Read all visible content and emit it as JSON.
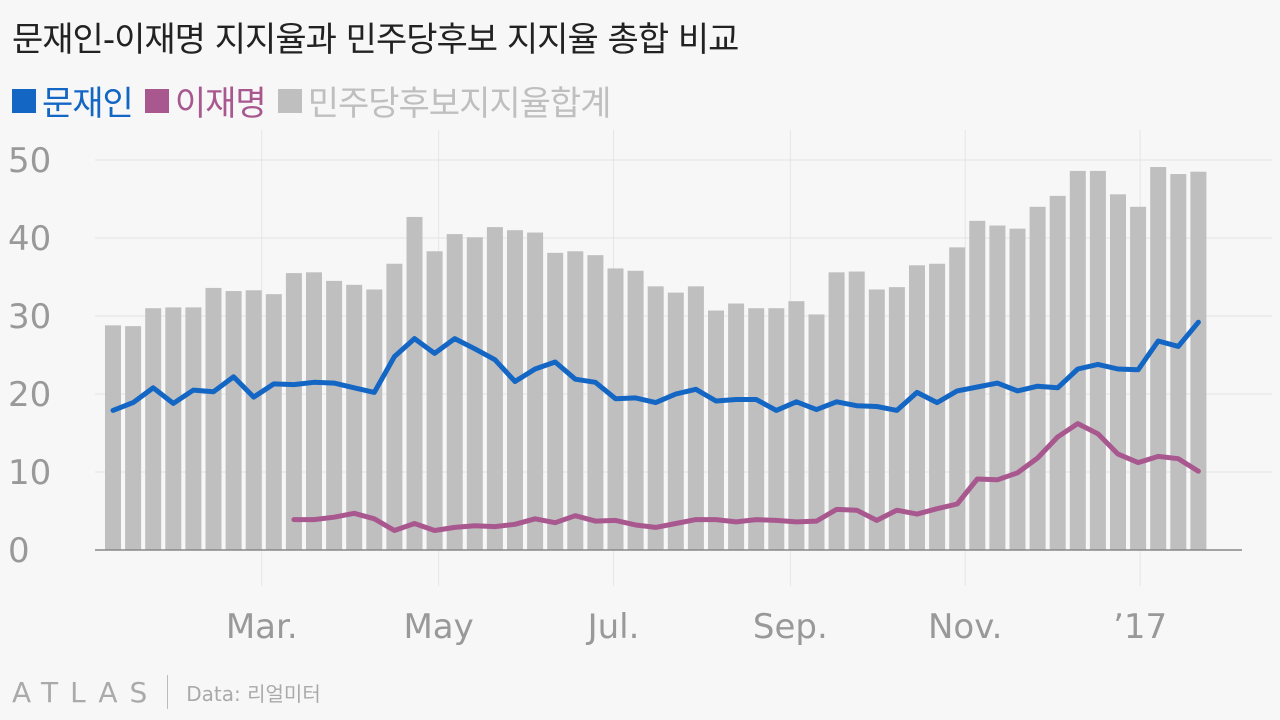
{
  "title": "문재인-이재명 지지율과 민주당후보 지지율 총합 비교",
  "footer": {
    "brand": "ATLAS",
    "source": "Data: 리얼미터"
  },
  "colors": {
    "moon": "#1466c4",
    "lee": "#a8588f",
    "total": "#bfbfbf"
  },
  "chart_data": {
    "type": "bar+line",
    "ylim": [
      0,
      50
    ],
    "yticks": [
      0,
      10,
      20,
      30,
      40,
      50
    ],
    "grid": true,
    "legend_position": "top-left",
    "xticks": [
      {
        "label": "Mar.",
        "pos": 7.4
      },
      {
        "label": "May",
        "pos": 16.2
      },
      {
        "label": "Jul.",
        "pos": 24.9
      },
      {
        "label": "Sep.",
        "pos": 33.7
      },
      {
        "label": "Nov.",
        "pos": 42.4
      },
      {
        "label": "’17",
        "pos": 51.1
      }
    ],
    "series": [
      {
        "name": "민주당후보지지율합계",
        "type": "bar",
        "values": [
          28.8,
          28.7,
          31.0,
          31.1,
          31.1,
          33.6,
          33.2,
          33.3,
          32.8,
          35.5,
          35.6,
          34.5,
          34.0,
          33.4,
          36.7,
          42.7,
          38.3,
          40.5,
          40.1,
          41.4,
          41.0,
          40.7,
          38.1,
          38.3,
          37.8,
          36.1,
          35.8,
          33.8,
          33.0,
          33.8,
          30.7,
          31.6,
          31.0,
          31.0,
          31.9,
          30.2,
          35.6,
          35.7,
          33.4,
          33.7,
          36.5,
          36.7,
          38.8,
          42.2,
          41.6,
          41.2,
          44.0,
          45.4,
          48.6,
          48.6,
          45.6,
          44.0,
          49.1,
          48.2,
          48.5
        ]
      },
      {
        "name": "문재인",
        "type": "line",
        "values": [
          17.9,
          18.9,
          20.8,
          18.8,
          20.5,
          20.3,
          22.2,
          19.6,
          21.3,
          21.2,
          21.5,
          21.4,
          20.8,
          20.2,
          24.8,
          27.1,
          25.2,
          27.1,
          25.8,
          24.4,
          21.6,
          23.2,
          24.1,
          21.9,
          21.5,
          19.4,
          19.5,
          18.9,
          20.0,
          20.6,
          19.1,
          19.3,
          19.3,
          17.9,
          19.0,
          18.0,
          19.0,
          18.5,
          18.4,
          17.9,
          20.2,
          18.9,
          20.4,
          20.9,
          21.4,
          20.4,
          21.0,
          20.8,
          23.2,
          23.8,
          23.2,
          23.1,
          26.8,
          26.1,
          29.2
        ]
      },
      {
        "name": "이재명",
        "type": "line",
        "values": [
          null,
          null,
          null,
          null,
          null,
          null,
          null,
          null,
          null,
          3.9,
          3.9,
          4.2,
          4.7,
          4.0,
          2.5,
          3.4,
          2.5,
          2.9,
          3.1,
          3.0,
          3.3,
          4.0,
          3.5,
          4.4,
          3.7,
          3.8,
          3.2,
          2.9,
          3.4,
          3.9,
          3.9,
          3.6,
          3.9,
          3.8,
          3.6,
          3.7,
          5.2,
          5.1,
          3.8,
          5.1,
          4.6,
          5.3,
          5.9,
          9.1,
          9.0,
          9.9,
          11.8,
          14.5,
          16.2,
          14.9,
          12.3,
          11.2,
          12.0,
          11.7,
          10.1
        ]
      }
    ]
  }
}
